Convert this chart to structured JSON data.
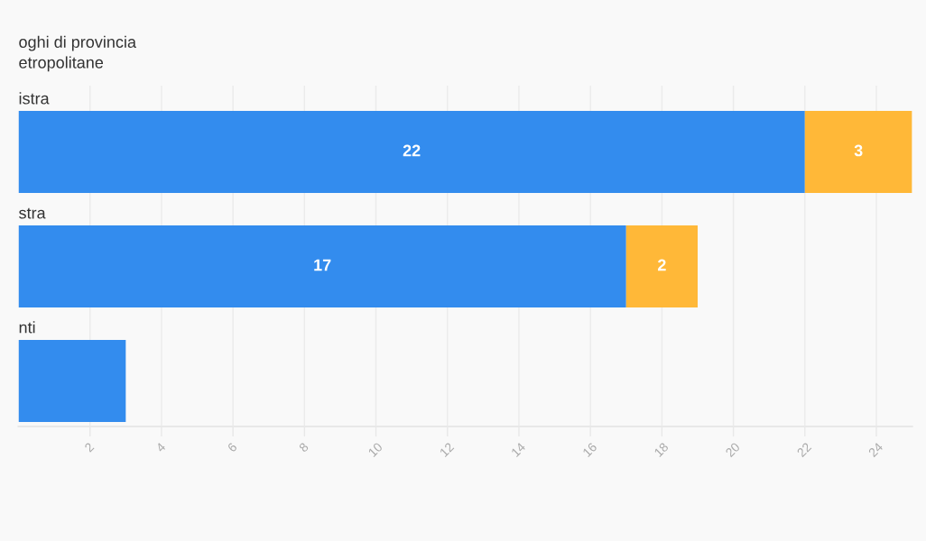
{
  "chart_data": {
    "type": "bar",
    "orientation": "horizontal",
    "stacked": true,
    "title": "oghi di provincia\netropolitane",
    "categories": [
      "istra",
      "stra",
      "nti"
    ],
    "series": [
      {
        "color": "#338cee",
        "values": [
          22,
          17,
          3
        ],
        "value_labels": [
          "22",
          "17",
          null
        ]
      },
      {
        "color": "#ffb838",
        "values": [
          3,
          2,
          null
        ],
        "value_labels": [
          "3",
          "2",
          null
        ]
      }
    ],
    "xlim": [
      0,
      25
    ],
    "xticks": [
      2,
      4,
      6,
      8,
      10,
      12,
      14,
      16,
      18,
      20,
      22,
      24
    ],
    "grid": "x",
    "legend": false
  }
}
